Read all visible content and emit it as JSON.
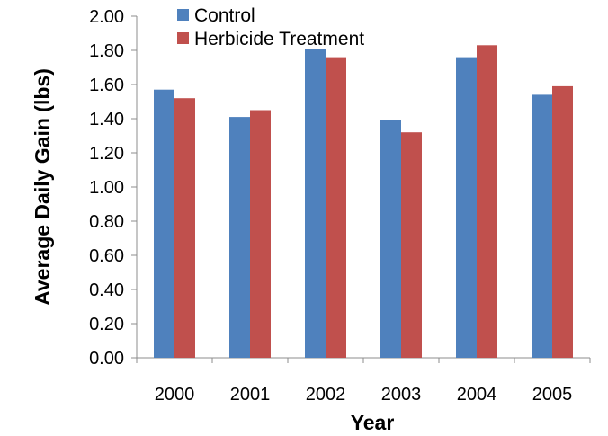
{
  "chart_data": {
    "type": "bar",
    "title": "",
    "xlabel": "Year",
    "ylabel": "Average Daily Gain (lbs)",
    "categories": [
      "2000",
      "2001",
      "2002",
      "2003",
      "2004",
      "2005"
    ],
    "series": [
      {
        "name": "Control",
        "color": "#4f81bd",
        "values": [
          1.57,
          1.41,
          1.81,
          1.39,
          1.76,
          1.54
        ]
      },
      {
        "name": "Herbicide Treatment",
        "color": "#c0504d",
        "values": [
          1.52,
          1.45,
          1.76,
          1.32,
          1.83,
          1.59
        ]
      }
    ],
    "ylim": [
      0,
      2.0
    ],
    "yticks": [
      "0.00",
      "0.20",
      "0.40",
      "0.60",
      "0.80",
      "1.00",
      "1.20",
      "1.40",
      "1.60",
      "1.80",
      "2.00"
    ],
    "grid": false,
    "legend_position": "top-left"
  }
}
